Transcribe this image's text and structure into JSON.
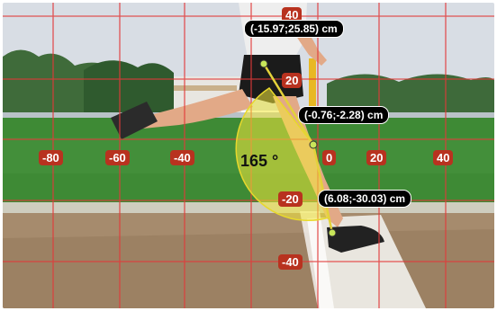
{
  "colors": {
    "grid_line": "#e23a3a",
    "axis_label_bg": "#b8321f",
    "angle_fill": "#f3e83a",
    "arm_line": "#e3d23a",
    "coord_bg": "#000000",
    "coord_text": "#ffffff",
    "grass": "#3e8a35",
    "sand": "#a68b6d"
  },
  "axes": {
    "x_labels": [
      "-80",
      "-60",
      "-40",
      "0",
      "20",
      "40"
    ],
    "y_labels": [
      "40",
      "20",
      "-20",
      "-40"
    ]
  },
  "angle": {
    "value_label": "165 °"
  },
  "points": [
    {
      "label": "(-15.97;25.85) cm"
    },
    {
      "label": "(-0.76;-2.28) cm"
    },
    {
      "label": "(6.08;-30.03) cm"
    }
  ]
}
